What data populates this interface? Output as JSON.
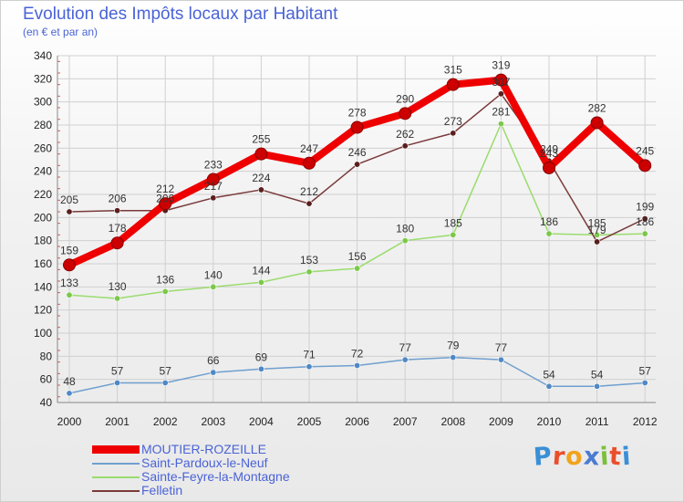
{
  "header": {
    "title": "Evolution des Impôts locaux par Habitant",
    "subtitle": "(en € et par an)"
  },
  "logo": {
    "text": "Proxiti",
    "colors": [
      "#3b8fd6",
      "#e94f2b",
      "#f2a31b",
      "#4a7bd1",
      "#7cbf3b",
      "#e94f2b",
      "#3b8fd6"
    ]
  },
  "chart_data": {
    "type": "line",
    "title": "Evolution des Impôts locaux par Habitant",
    "subtitle": "(en € et par an)",
    "xlabel": "",
    "ylabel": "",
    "x": [
      "2000",
      "2001",
      "2002",
      "2003",
      "2004",
      "2005",
      "2006",
      "2007",
      "2008",
      "2009",
      "2010",
      "2011",
      "2012"
    ],
    "ylim": [
      40,
      340
    ],
    "yticks": [
      40,
      60,
      80,
      100,
      120,
      140,
      160,
      180,
      200,
      220,
      240,
      260,
      280,
      300,
      320,
      340
    ],
    "grid": true,
    "legend_position": "bottom-left",
    "series": [
      {
        "name": "MOUTIER-ROZEILLE",
        "values": [
          159,
          178,
          212,
          233,
          255,
          247,
          278,
          290,
          315,
          319,
          243,
          282,
          245
        ],
        "labels": [
          "159",
          "178",
          "212",
          "233",
          "255",
          "247",
          "278",
          "290",
          "315",
          "319",
          "243",
          "282",
          "245"
        ],
        "color": "#ee0000",
        "marker_color": "#cc0000",
        "label_color": "#333333"
      },
      {
        "name": "Saint-Pardoux-le-Neuf",
        "values": [
          48,
          57,
          57,
          66,
          69,
          71,
          72,
          77,
          79,
          77,
          54,
          54,
          57
        ],
        "labels": [
          "48",
          "57",
          "57",
          "66",
          "69",
          "71",
          "72",
          "77",
          "79",
          "77",
          "54",
          "54",
          "57"
        ],
        "color": "#6f9fcf",
        "marker_color": "#4f88c6",
        "label_color": "#333333"
      },
      {
        "name": "Sainte-Feyre-la-Montagne",
        "values": [
          133,
          130,
          136,
          140,
          144,
          153,
          156,
          180,
          185,
          281,
          186,
          185,
          186
        ],
        "labels": [
          "133",
          "130",
          "136",
          "140",
          "144",
          "153",
          "156",
          "180",
          "185",
          "281",
          "186",
          "185",
          "186"
        ],
        "color": "#9bdc6e",
        "marker_color": "#7cc84a",
        "label_color": "#333333"
      },
      {
        "name": "Felletin",
        "values": [
          205,
          206,
          206,
          217,
          224,
          212,
          246,
          262,
          273,
          307,
          249,
          179,
          199
        ],
        "labels": [
          "205",
          "206",
          "206",
          "217",
          "224",
          "212",
          "246",
          "262",
          "273",
          "307",
          "249",
          "179",
          "199"
        ],
        "color": "#7a3a3a",
        "marker_color": "#5a1e1e",
        "label_color": "#333333"
      }
    ]
  }
}
